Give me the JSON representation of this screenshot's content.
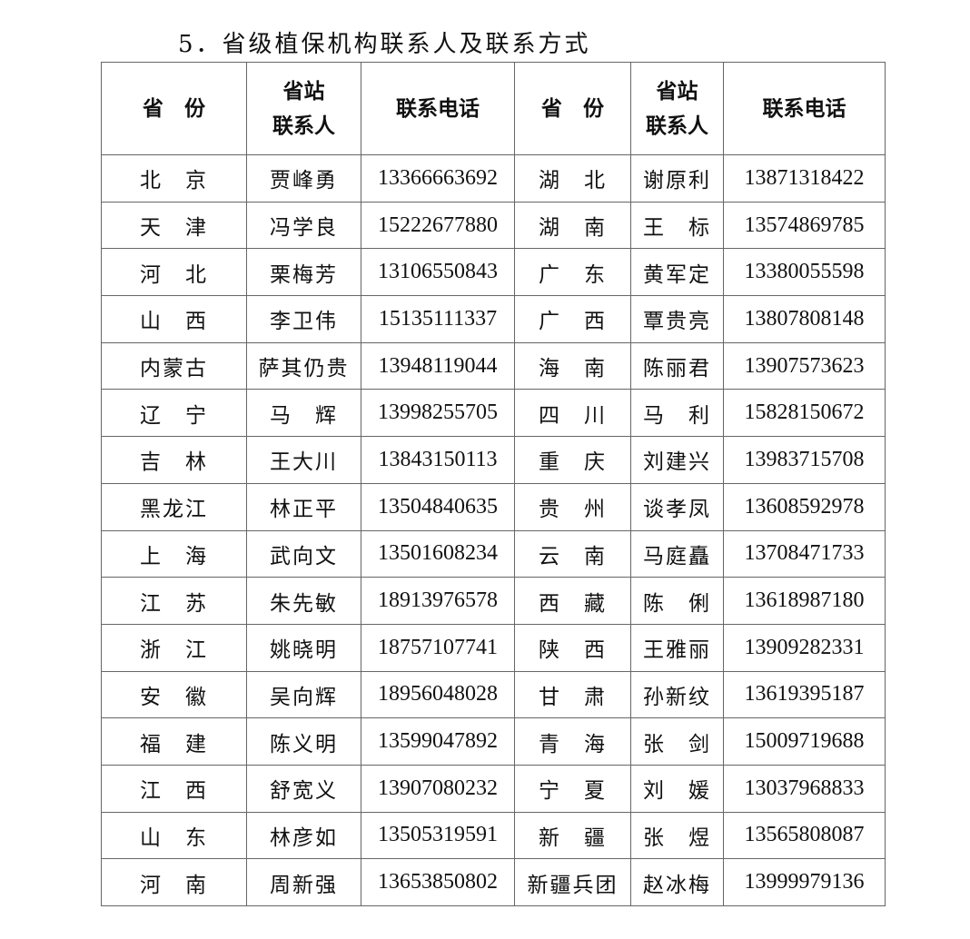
{
  "title": "5．省级植保机构联系人及联系方式",
  "headers": {
    "province": "省　份",
    "contact_line1": "省站",
    "contact_line2": "联系人",
    "phone": "联系电话"
  },
  "rows": [
    {
      "p1": "北　京",
      "c1": "贾峰勇",
      "t1": "13366663692",
      "p2": "湖　北",
      "c2": "谢原利",
      "t2": "13871318422"
    },
    {
      "p1": "天　津",
      "c1": "冯学良",
      "t1": "15222677880",
      "p2": "湖　南",
      "c2": "王　标",
      "t2": "13574869785"
    },
    {
      "p1": "河　北",
      "c1": "栗梅芳",
      "t1": "13106550843",
      "p2": "广　东",
      "c2": "黄军定",
      "t2": "13380055598"
    },
    {
      "p1": "山　西",
      "c1": "李卫伟",
      "t1": "15135111337",
      "p2": "广　西",
      "c2": "覃贵亮",
      "t2": "13807808148"
    },
    {
      "p1": "内蒙古",
      "c1": "萨其仍贵",
      "t1": "13948119044",
      "p2": "海　南",
      "c2": "陈丽君",
      "t2": "13907573623"
    },
    {
      "p1": "辽　宁",
      "c1": "马　辉",
      "t1": "13998255705",
      "p2": "四　川",
      "c2": "马　利",
      "t2": "15828150672"
    },
    {
      "p1": "吉　林",
      "c1": "王大川",
      "t1": "13843150113",
      "p2": "重　庆",
      "c2": "刘建兴",
      "t2": "13983715708"
    },
    {
      "p1": "黑龙江",
      "c1": "林正平",
      "t1": "13504840635",
      "p2": "贵　州",
      "c2": "谈孝凤",
      "t2": "13608592978"
    },
    {
      "p1": "上　海",
      "c1": "武向文",
      "t1": "13501608234",
      "p2": "云　南",
      "c2": "马庭矗",
      "t2": "13708471733"
    },
    {
      "p1": "江　苏",
      "c1": "朱先敏",
      "t1": "18913976578",
      "p2": "西　藏",
      "c2": "陈　俐",
      "t2": "13618987180"
    },
    {
      "p1": "浙　江",
      "c1": "姚晓明",
      "t1": "18757107741",
      "p2": "陕　西",
      "c2": "王雅丽",
      "t2": "13909282331"
    },
    {
      "p1": "安　徽",
      "c1": "吴向辉",
      "t1": "18956048028",
      "p2": "甘　肃",
      "c2": "孙新纹",
      "t2": "13619395187"
    },
    {
      "p1": "福　建",
      "c1": "陈义明",
      "t1": "13599047892",
      "p2": "青　海",
      "c2": "张　剑",
      "t2": "15009719688"
    },
    {
      "p1": "江　西",
      "c1": "舒宽义",
      "t1": "13907080232",
      "p2": "宁　夏",
      "c2": "刘　媛",
      "t2": "13037968833"
    },
    {
      "p1": "山　东",
      "c1": "林彦如",
      "t1": "13505319591",
      "p2": "新　疆",
      "c2": "张　煜",
      "t2": "13565808087"
    },
    {
      "p1": "河　南",
      "c1": "周新强",
      "t1": "13653850802",
      "p2": "新疆兵团",
      "c2": "赵冰梅",
      "t2": "13999979136"
    }
  ]
}
